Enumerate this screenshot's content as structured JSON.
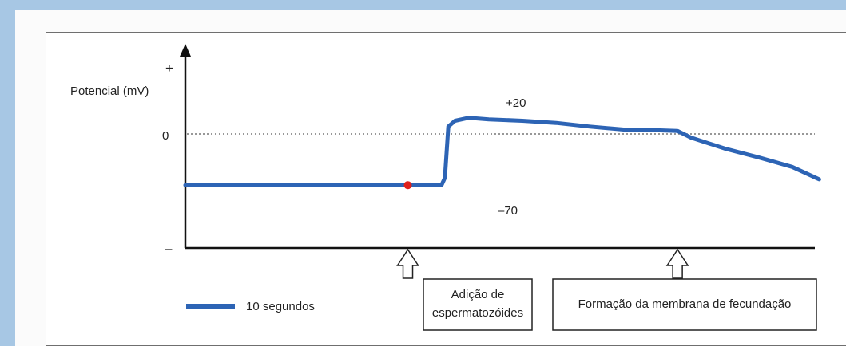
{
  "chart_data": {
    "type": "line",
    "ylabel": "Potencial (mV)",
    "y_axis_plus": "+",
    "y_axis_minus": "–",
    "y_zero_tick": "0",
    "grid": false,
    "reference_line": {
      "y": 0,
      "style": "dotted"
    },
    "value_labels": [
      {
        "text": "+20",
        "value": 20
      },
      {
        "text": "–70",
        "value": -70
      }
    ],
    "series": [
      {
        "color": "#2d64b5",
        "x": [
          0,
          40,
          76,
          77,
          78,
          80,
          84,
          90,
          100,
          110,
          120,
          130,
          140,
          146,
          150,
          160,
          170,
          180,
          188
        ],
        "y": [
          -70,
          -70,
          -70,
          -60,
          10,
          18,
          22,
          20,
          18,
          15,
          10,
          6,
          5,
          4,
          -5,
          -20,
          -32,
          -45,
          -62
        ]
      }
    ],
    "scale_bar": {
      "label": "10 segundos",
      "color": "#2d64b5"
    },
    "marker": {
      "color": "#e0201b",
      "x": 66,
      "y": -70
    },
    "annotations": [
      {
        "lines": [
          "Adição de",
          "espermatozóides"
        ],
        "x": 66
      },
      {
        "lines": [
          "Formação da membrana de fecundação"
        ],
        "x": 146
      }
    ]
  }
}
